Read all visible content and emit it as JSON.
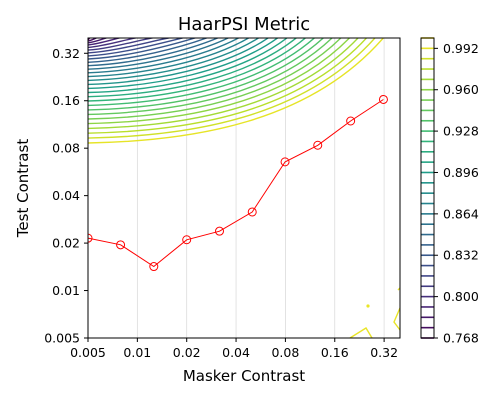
{
  "chart_data": {
    "type": "line",
    "title": "HaarPSI Metric",
    "xlabel": "Masker Contrast",
    "ylabel": "Test Contrast",
    "x_scale": "log",
    "y_scale": "log",
    "xlim": [
      0.005,
      0.4
    ],
    "ylim": [
      0.005,
      0.4
    ],
    "x_ticks": [
      0.005,
      0.01,
      0.02,
      0.04,
      0.08,
      0.16,
      0.32
    ],
    "x_tick_labels": [
      "0.005",
      "0.01",
      "0.02",
      "0.04",
      "0.08",
      "0.16",
      "0.32"
    ],
    "y_ticks": [
      0.005,
      0.01,
      0.02,
      0.04,
      0.08,
      0.16,
      0.32
    ],
    "y_tick_labels": [
      "0.005",
      "0.01",
      "0.02",
      "0.04",
      "0.08",
      "0.16",
      "0.32"
    ],
    "grid": "vertical",
    "series": [
      {
        "color": "#ff0000",
        "marker": "open-circle",
        "x": [
          0.005,
          0.0079,
          0.0126,
          0.02,
          0.0317,
          0.0502,
          0.0796,
          0.126,
          0.2,
          0.317
        ],
        "y": [
          0.0215,
          0.0195,
          0.0142,
          0.021,
          0.0238,
          0.0315,
          0.0655,
          0.0835,
          0.119,
          0.163
        ]
      }
    ],
    "contours": {
      "colormap": "viridis",
      "levels": [
        0.768,
        0.776,
        0.784,
        0.792,
        0.8,
        0.808,
        0.816,
        0.824,
        0.832,
        0.84,
        0.848,
        0.856,
        0.864,
        0.872,
        0.88,
        0.888,
        0.896,
        0.904,
        0.912,
        0.92,
        0.928,
        0.936,
        0.944,
        0.952,
        0.96,
        0.968,
        0.976,
        0.984,
        0.992,
        1.0
      ]
    },
    "colorbar": {
      "ticks": [
        0.768,
        0.8,
        0.832,
        0.864,
        0.896,
        0.928,
        0.96,
        0.992
      ],
      "tick_labels": [
        "0.768",
        "0.800",
        "0.832",
        "0.864",
        "0.896",
        "0.928",
        "0.960",
        "0.992"
      ],
      "range": [
        0.768,
        1.0
      ]
    }
  }
}
